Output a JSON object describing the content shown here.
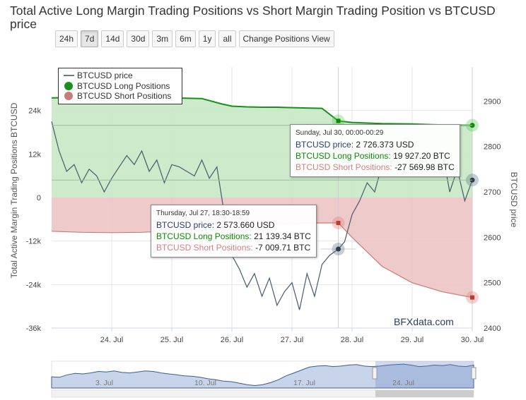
{
  "title": "Total Active Long Margin Trading Positions vs Short Margin Trading Position vs BTCUSD price",
  "range_buttons": [
    {
      "label": "24h",
      "active": false
    },
    {
      "label": "7d",
      "active": true
    },
    {
      "label": "14d",
      "active": false
    },
    {
      "label": "30d",
      "active": false
    },
    {
      "label": "3m",
      "active": false
    },
    {
      "label": "6m",
      "active": false
    },
    {
      "label": "1y",
      "active": false
    },
    {
      "label": "all",
      "active": false
    },
    {
      "label": "Change Positions View",
      "active": false
    }
  ],
  "legend": {
    "placement": "top-left",
    "items": [
      {
        "label": "BTCUSD price",
        "color": "#6a7a8a",
        "symbol": "line"
      },
      {
        "label": "BTCUSD Long Positions",
        "color": "#1a8f1a",
        "symbol": "dot"
      },
      {
        "label": "BTCUSD Short Positions",
        "color": "#c97a7a",
        "symbol": "dot"
      }
    ]
  },
  "watermark": "BFXdata.com",
  "tooltips": [
    {
      "header": "Thursday, Jul 27, 18:30-18:59",
      "price_label": "BTCUSD price",
      "price_value": "2 573.660 USD",
      "long_label": "BTCUSD Long Positions",
      "long_value": "21 139.34 BTC",
      "short_label": "BTCUSD Short Positions",
      "short_value": "-7 009.71 BTC"
    },
    {
      "header": "Sunday, Jul 30, 00:00-00:29",
      "price_label": "BTCUSD price",
      "price_value": "2 726.373 USD",
      "long_label": "BTCUSD Long Positions",
      "long_value": "19 927.20 BTC",
      "short_label": "BTCUSD Short Positions",
      "short_value": "-27 569.98 BTC"
    }
  ],
  "chart_data": {
    "type": "area",
    "x_type": "datetime",
    "x_range": [
      "2017-07-23",
      "2017-07-30"
    ],
    "x_tick_labels": [
      "24. Jul",
      "25. Jul",
      "26. Jul",
      "27. Jul",
      "28. Jul",
      "29. Jul",
      "30. Jul"
    ],
    "x_tick_values": [
      "2017-07-24",
      "2017-07-25",
      "2017-07-26",
      "2017-07-27",
      "2017-07-28",
      "2017-07-29",
      "2017-07-30"
    ],
    "ylabel_left": "Total Active Margin Trading Positions BTCUSD",
    "ylabel_right": "BTCUSD price",
    "ylim_left": [
      -36000,
      36000
    ],
    "ylim_right": [
      2400,
      2975
    ],
    "y_left_ticks": [
      "24k",
      "12k",
      "0",
      "-12k",
      "-24k",
      "-36k"
    ],
    "y_left_tick_values": [
      24000,
      12000,
      0,
      -12000,
      -24000,
      -36000
    ],
    "y_right_ticks": [
      "2900",
      "2800",
      "2700",
      "2600",
      "2500",
      "2400"
    ],
    "y_right_tick_values": [
      2900,
      2800,
      2700,
      2600,
      2500,
      2400
    ],
    "grid": true,
    "series": [
      {
        "name": "BTCUSD Long Positions",
        "axis": "left",
        "color": "#1a8f1a",
        "fill": "#c8e8c4",
        "x": [
          "2017-07-23 00:00",
          "2017-07-23 12:00",
          "2017-07-24 00:00",
          "2017-07-24 12:00",
          "2017-07-25 00:00",
          "2017-07-25 12:00",
          "2017-07-25 20:00",
          "2017-07-26 00:00",
          "2017-07-26 06:00",
          "2017-07-26 12:00",
          "2017-07-26 18:00",
          "2017-07-27 00:00",
          "2017-07-27 06:00",
          "2017-07-27 12:00",
          "2017-07-27 18:30",
          "2017-07-28 00:00",
          "2017-07-28 12:00",
          "2017-07-29 00:00",
          "2017-07-29 12:00",
          "2017-07-30 00:00"
        ],
        "values": [
          27500,
          27600,
          27700,
          27600,
          27500,
          27300,
          25800,
          25200,
          25000,
          24900,
          24900,
          24800,
          24700,
          24600,
          21139,
          20700,
          20400,
          20300,
          20000,
          19927
        ]
      },
      {
        "name": "BTCUSD Short Positions",
        "axis": "left",
        "color": "#c97a7a",
        "fill": "#ecc4c4",
        "x": [
          "2017-07-23 00:00",
          "2017-07-23 12:00",
          "2017-07-24 00:00",
          "2017-07-24 12:00",
          "2017-07-25 00:00",
          "2017-07-25 12:00",
          "2017-07-26 00:00",
          "2017-07-26 12:00",
          "2017-07-27 00:00",
          "2017-07-27 12:00",
          "2017-07-27 18:30",
          "2017-07-28 00:00",
          "2017-07-28 06:00",
          "2017-07-28 12:00",
          "2017-07-29 00:00",
          "2017-07-29 12:00",
          "2017-07-30 00:00"
        ],
        "values": [
          -9300,
          -9600,
          -9700,
          -9600,
          -9200,
          -7700,
          -7400,
          -7200,
          -7100,
          -7000,
          -7010,
          -11000,
          -15000,
          -19000,
          -23500,
          -26000,
          -27570
        ]
      },
      {
        "name": "BTCUSD price",
        "axis": "right",
        "color": "#4a5a6c",
        "x": [
          "2017-07-23 00:00",
          "2017-07-23 03:00",
          "2017-07-23 06:00",
          "2017-07-23 09:00",
          "2017-07-23 12:00",
          "2017-07-23 15:00",
          "2017-07-23 18:00",
          "2017-07-23 21:00",
          "2017-07-24 00:00",
          "2017-07-24 03:00",
          "2017-07-24 06:00",
          "2017-07-24 09:00",
          "2017-07-24 12:00",
          "2017-07-24 15:00",
          "2017-07-24 18:00",
          "2017-07-24 21:00",
          "2017-07-25 00:00",
          "2017-07-25 03:00",
          "2017-07-25 06:00",
          "2017-07-25 09:00",
          "2017-07-25 12:00",
          "2017-07-25 15:00",
          "2017-07-25 18:00",
          "2017-07-25 21:00",
          "2017-07-26 00:00",
          "2017-07-26 03:00",
          "2017-07-26 06:00",
          "2017-07-26 09:00",
          "2017-07-26 12:00",
          "2017-07-26 15:00",
          "2017-07-26 18:00",
          "2017-07-26 21:00",
          "2017-07-27 00:00",
          "2017-07-27 03:00",
          "2017-07-27 06:00",
          "2017-07-27 09:00",
          "2017-07-27 12:00",
          "2017-07-27 15:00",
          "2017-07-27 18:30",
          "2017-07-27 21:00",
          "2017-07-28 00:00",
          "2017-07-28 03:00",
          "2017-07-28 06:00",
          "2017-07-28 09:00",
          "2017-07-28 12:00",
          "2017-07-28 15:00",
          "2017-07-28 18:00",
          "2017-07-28 21:00",
          "2017-07-29 00:00",
          "2017-07-29 03:00",
          "2017-07-29 06:00",
          "2017-07-29 09:00",
          "2017-07-29 12:00",
          "2017-07-29 15:00",
          "2017-07-29 18:00",
          "2017-07-29 21:00",
          "2017-07-30 00:00"
        ],
        "values": [
          2855,
          2790,
          2745,
          2760,
          2720,
          2750,
          2735,
          2700,
          2730,
          2755,
          2780,
          2760,
          2790,
          2745,
          2770,
          2720,
          2760,
          2755,
          2745,
          2735,
          2770,
          2730,
          2755,
          2650,
          2560,
          2530,
          2490,
          2520,
          2470,
          2510,
          2450,
          2480,
          2500,
          2440,
          2520,
          2470,
          2540,
          2560,
          2574,
          2590,
          2650,
          2680,
          2720,
          2700,
          2760,
          2800,
          2780,
          2820,
          2810,
          2760,
          2790,
          2740,
          2790,
          2700,
          2750,
          2680,
          2726
        ]
      }
    ]
  },
  "navigator": {
    "x_tick_labels": [
      "3. Jul",
      "10. Jul",
      "17. Jul",
      "24. Jul"
    ],
    "values": [
      2480,
      2470,
      2520,
      2550,
      2540,
      2560,
      2590,
      2580,
      2600,
      2570,
      2560,
      2580,
      2600,
      2590,
      2560,
      2540,
      2520,
      2500,
      2490,
      2470,
      2440,
      2420,
      2390,
      2380,
      2350,
      2320,
      2300,
      2320,
      2360,
      2420,
      2500,
      2560,
      2620,
      2680,
      2700,
      2710,
      2690,
      2700,
      2720,
      2730,
      2700,
      2690,
      2700,
      2720,
      2730,
      2740,
      2720,
      2690,
      2700,
      2720,
      2710,
      2730,
      2700,
      2690,
      2720
    ]
  }
}
